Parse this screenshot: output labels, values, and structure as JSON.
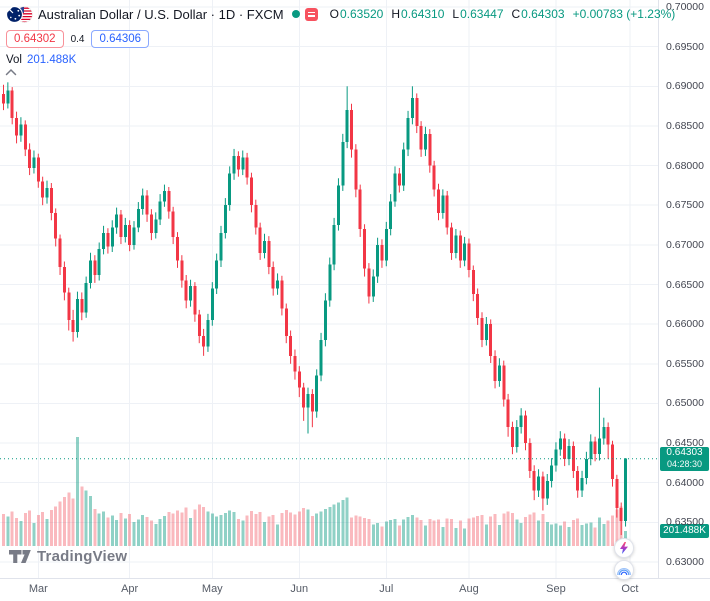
{
  "header": {
    "title": "Australian Dollar / U.S. Dollar · 1D · FXCM",
    "ohlc": {
      "o_label": "O",
      "o_value": "0.63520",
      "h_label": "H",
      "h_value": "0.64310",
      "l_label": "L",
      "l_value": "0.63447",
      "c_label": "C",
      "c_value": "0.64303",
      "change_value": "+0.00783 (+1.23%)"
    },
    "sell_price": "0.64302",
    "spread": "0.4",
    "buy_price": "0.64306",
    "volume_label": "Vol",
    "volume_value": "201.488K"
  },
  "price_axis": {
    "current_price_badge": {
      "price": "0.64303",
      "countdown": "04:28:30"
    },
    "volume_badge": {
      "value": "201.488K"
    }
  },
  "footer": {
    "logo_text": "TradingView"
  },
  "chart_data": {
    "type": "candlestick",
    "symbol": "AUD/USD",
    "title": "Australian Dollar / U.S. Dollar",
    "timeframe": "1D",
    "exchange": "FXCM",
    "price_range": [
      0.63,
      0.7
    ],
    "grid_step": 0.005,
    "y_axis_labels": [
      "0.70000",
      "0.69500",
      "0.69000",
      "0.68500",
      "0.68000",
      "0.67500",
      "0.67000",
      "0.66500",
      "0.66000",
      "0.65500",
      "0.65000",
      "0.64500",
      "0.64000",
      "0.63500",
      "0.63000"
    ],
    "x_axis_ticks": [
      {
        "label": "Mar",
        "index": 8
      },
      {
        "label": "Apr",
        "index": 29
      },
      {
        "label": "May",
        "index": 48
      },
      {
        "label": "Jun",
        "index": 68
      },
      {
        "label": "Jul",
        "index": 88
      },
      {
        "label": "Aug",
        "index": 107
      },
      {
        "label": "Sep",
        "index": 127
      },
      {
        "label": "Oct",
        "index": 144
      }
    ],
    "current_price": 0.64303,
    "current_bar_countdown": "04:28:30",
    "last_volume_label": "201.488K",
    "volume_scale_max": 1450,
    "colors": {
      "up": "#089981",
      "down": "#f23645",
      "vol_up": "rgba(8,153,129,0.45)",
      "vol_down": "rgba(242,54,69,0.35)",
      "grid": "#eef1f6",
      "accent_blue": "#2962ff"
    },
    "candles": [
      [
        0.689,
        0.6902,
        0.687,
        0.6878,
        425
      ],
      [
        0.6878,
        0.6905,
        0.6872,
        0.6895,
        390
      ],
      [
        0.6895,
        0.6899,
        0.6852,
        0.686,
        460
      ],
      [
        0.686,
        0.6868,
        0.6828,
        0.6838,
        370
      ],
      [
        0.6838,
        0.6861,
        0.683,
        0.6852,
        330
      ],
      [
        0.6852,
        0.6857,
        0.6812,
        0.682,
        440
      ],
      [
        0.682,
        0.6828,
        0.6788,
        0.6797,
        475
      ],
      [
        0.6797,
        0.6819,
        0.679,
        0.681,
        305
      ],
      [
        0.681,
        0.6815,
        0.6772,
        0.678,
        415
      ],
      [
        0.678,
        0.6786,
        0.675,
        0.676,
        450
      ],
      [
        0.676,
        0.6781,
        0.6752,
        0.6772,
        360
      ],
      [
        0.6772,
        0.6778,
        0.6731,
        0.674,
        480
      ],
      [
        0.674,
        0.6746,
        0.6698,
        0.6708,
        525
      ],
      [
        0.6708,
        0.6713,
        0.6662,
        0.6672,
        590
      ],
      [
        0.6672,
        0.6679,
        0.663,
        0.664,
        655
      ],
      [
        0.664,
        0.6646,
        0.6592,
        0.6605,
        710
      ],
      [
        0.6605,
        0.6618,
        0.6578,
        0.659,
        630
      ],
      [
        0.659,
        0.6641,
        0.6583,
        0.6632,
        1450
      ],
      [
        0.6632,
        0.664,
        0.6605,
        0.6615,
        790
      ],
      [
        0.6615,
        0.666,
        0.6608,
        0.6652,
        735
      ],
      [
        0.6652,
        0.669,
        0.6645,
        0.668,
        665
      ],
      [
        0.668,
        0.6687,
        0.6652,
        0.6662,
        490
      ],
      [
        0.6662,
        0.6703,
        0.6655,
        0.6695,
        435
      ],
      [
        0.6695,
        0.6724,
        0.6688,
        0.6715,
        460
      ],
      [
        0.6715,
        0.6721,
        0.6689,
        0.6698,
        380
      ],
      [
        0.6698,
        0.6731,
        0.6691,
        0.6722,
        405
      ],
      [
        0.6722,
        0.6747,
        0.6714,
        0.6738,
        345
      ],
      [
        0.6738,
        0.6744,
        0.6701,
        0.671,
        440
      ],
      [
        0.671,
        0.6734,
        0.6703,
        0.6725,
        365
      ],
      [
        0.6725,
        0.6731,
        0.6692,
        0.67,
        425
      ],
      [
        0.67,
        0.673,
        0.6694,
        0.6722,
        320
      ],
      [
        0.6722,
        0.6754,
        0.6716,
        0.6745,
        355
      ],
      [
        0.6745,
        0.6771,
        0.6738,
        0.6762,
        415
      ],
      [
        0.6762,
        0.6769,
        0.6729,
        0.6738,
        385
      ],
      [
        0.6738,
        0.6745,
        0.6706,
        0.6715,
        340
      ],
      [
        0.6715,
        0.6741,
        0.6708,
        0.6732,
        295
      ],
      [
        0.6732,
        0.6764,
        0.6725,
        0.6755,
        360
      ],
      [
        0.6755,
        0.6776,
        0.6748,
        0.6768,
        400
      ],
      [
        0.6768,
        0.6773,
        0.6733,
        0.6742,
        455
      ],
      [
        0.6742,
        0.6748,
        0.6701,
        0.671,
        435
      ],
      [
        0.671,
        0.6716,
        0.6671,
        0.668,
        470
      ],
      [
        0.668,
        0.6687,
        0.6646,
        0.6655,
        445
      ],
      [
        0.6655,
        0.6662,
        0.662,
        0.663,
        510
      ],
      [
        0.663,
        0.6656,
        0.6622,
        0.6648,
        375
      ],
      [
        0.6648,
        0.6653,
        0.6603,
        0.6612,
        485
      ],
      [
        0.6612,
        0.6618,
        0.6576,
        0.6585,
        550
      ],
      [
        0.6585,
        0.6594,
        0.656,
        0.6572,
        520
      ],
      [
        0.6572,
        0.6613,
        0.6565,
        0.6605,
        460
      ],
      [
        0.6605,
        0.6653,
        0.6598,
        0.6645,
        430
      ],
      [
        0.6645,
        0.6689,
        0.6638,
        0.668,
        395
      ],
      [
        0.668,
        0.6724,
        0.6672,
        0.6715,
        415
      ],
      [
        0.6715,
        0.6759,
        0.6708,
        0.675,
        440
      ],
      [
        0.675,
        0.6799,
        0.6743,
        0.679,
        475
      ],
      [
        0.679,
        0.6821,
        0.6782,
        0.6812,
        450
      ],
      [
        0.6812,
        0.6818,
        0.6786,
        0.6795,
        360
      ],
      [
        0.6795,
        0.6819,
        0.6788,
        0.681,
        340
      ],
      [
        0.681,
        0.6816,
        0.6776,
        0.6785,
        405
      ],
      [
        0.6785,
        0.6791,
        0.6741,
        0.675,
        465
      ],
      [
        0.675,
        0.6757,
        0.6713,
        0.6722,
        425
      ],
      [
        0.6722,
        0.6728,
        0.6681,
        0.669,
        455
      ],
      [
        0.669,
        0.6714,
        0.6683,
        0.6705,
        320
      ],
      [
        0.6705,
        0.6711,
        0.6663,
        0.6672,
        390
      ],
      [
        0.6672,
        0.6679,
        0.6636,
        0.6645,
        410
      ],
      [
        0.6645,
        0.6664,
        0.6637,
        0.6655,
        285
      ],
      [
        0.6655,
        0.6661,
        0.6611,
        0.662,
        440
      ],
      [
        0.662,
        0.6626,
        0.6576,
        0.6585,
        480
      ],
      [
        0.6585,
        0.6592,
        0.655,
        0.656,
        445
      ],
      [
        0.656,
        0.6568,
        0.653,
        0.654,
        420
      ],
      [
        0.654,
        0.6547,
        0.6508,
        0.652,
        460
      ],
      [
        0.652,
        0.6526,
        0.6478,
        0.6495,
        505
      ],
      [
        0.6495,
        0.652,
        0.6462,
        0.6512,
        485
      ],
      [
        0.6512,
        0.6518,
        0.647,
        0.649,
        400
      ],
      [
        0.649,
        0.6543,
        0.6482,
        0.6535,
        430
      ],
      [
        0.6535,
        0.6589,
        0.6528,
        0.658,
        460
      ],
      [
        0.658,
        0.6639,
        0.6572,
        0.663,
        495
      ],
      [
        0.663,
        0.6684,
        0.6622,
        0.6675,
        520
      ],
      [
        0.6675,
        0.6734,
        0.6668,
        0.6725,
        550
      ],
      [
        0.6725,
        0.6784,
        0.6718,
        0.6775,
        580
      ],
      [
        0.6775,
        0.684,
        0.6768,
        0.683,
        615
      ],
      [
        0.683,
        0.69,
        0.6822,
        0.687,
        645
      ],
      [
        0.687,
        0.6878,
        0.681,
        0.682,
        380
      ],
      [
        0.682,
        0.6827,
        0.676,
        0.677,
        408
      ],
      [
        0.677,
        0.6776,
        0.671,
        0.672,
        392
      ],
      [
        0.672,
        0.6726,
        0.666,
        0.667,
        372
      ],
      [
        0.667,
        0.6677,
        0.6626,
        0.6635,
        360
      ],
      [
        0.6635,
        0.6669,
        0.6628,
        0.666,
        284
      ],
      [
        0.666,
        0.6709,
        0.6652,
        0.67,
        308
      ],
      [
        0.67,
        0.6707,
        0.6671,
        0.668,
        260
      ],
      [
        0.668,
        0.6729,
        0.6673,
        0.672,
        328
      ],
      [
        0.672,
        0.6764,
        0.6712,
        0.6755,
        344
      ],
      [
        0.6755,
        0.6799,
        0.6748,
        0.679,
        360
      ],
      [
        0.679,
        0.6797,
        0.6766,
        0.6775,
        272
      ],
      [
        0.6775,
        0.6829,
        0.6768,
        0.682,
        352
      ],
      [
        0.682,
        0.6869,
        0.6812,
        0.686,
        384
      ],
      [
        0.686,
        0.69,
        0.6852,
        0.6885,
        412
      ],
      [
        0.6885,
        0.6891,
        0.6841,
        0.685,
        376
      ],
      [
        0.685,
        0.6856,
        0.6811,
        0.682,
        348
      ],
      [
        0.682,
        0.6849,
        0.6812,
        0.684,
        276
      ],
      [
        0.684,
        0.6846,
        0.6791,
        0.68,
        360
      ],
      [
        0.68,
        0.6806,
        0.6761,
        0.677,
        336
      ],
      [
        0.677,
        0.6777,
        0.6731,
        0.674,
        352
      ],
      [
        0.674,
        0.677,
        0.6733,
        0.6762,
        252
      ],
      [
        0.6762,
        0.6768,
        0.6713,
        0.6722,
        368
      ],
      [
        0.6722,
        0.6728,
        0.6681,
        0.669,
        356
      ],
      [
        0.669,
        0.672,
        0.6683,
        0.6712,
        240
      ],
      [
        0.6712,
        0.6718,
        0.6671,
        0.668,
        340
      ],
      [
        0.668,
        0.671,
        0.6673,
        0.6702,
        232
      ],
      [
        0.6702,
        0.6708,
        0.6659,
        0.6668,
        364
      ],
      [
        0.6668,
        0.6674,
        0.6629,
        0.6638,
        380
      ],
      [
        0.6638,
        0.6645,
        0.6599,
        0.6608,
        396
      ],
      [
        0.6608,
        0.6615,
        0.6571,
        0.658,
        412
      ],
      [
        0.658,
        0.6609,
        0.6573,
        0.66,
        288
      ],
      [
        0.66,
        0.6606,
        0.6551,
        0.656,
        392
      ],
      [
        0.656,
        0.6567,
        0.6519,
        0.6528,
        424
      ],
      [
        0.6528,
        0.6557,
        0.6521,
        0.6548,
        280
      ],
      [
        0.6548,
        0.6554,
        0.6496,
        0.6505,
        432
      ],
      [
        0.6505,
        0.6512,
        0.6458,
        0.647,
        460
      ],
      [
        0.647,
        0.6477,
        0.6436,
        0.6445,
        436
      ],
      [
        0.6445,
        0.6479,
        0.6438,
        0.647,
        352
      ],
      [
        0.647,
        0.6494,
        0.6462,
        0.6485,
        304
      ],
      [
        0.6485,
        0.6491,
        0.6441,
        0.645,
        388
      ],
      [
        0.645,
        0.6456,
        0.6406,
        0.6415,
        420
      ],
      [
        0.6415,
        0.6422,
        0.6378,
        0.639,
        448
      ],
      [
        0.639,
        0.6417,
        0.6382,
        0.6408,
        336
      ],
      [
        0.6408,
        0.6414,
        0.6365,
        0.638,
        428
      ],
      [
        0.638,
        0.6411,
        0.6372,
        0.6402,
        316
      ],
      [
        0.6402,
        0.6431,
        0.6394,
        0.6422,
        288
      ],
      [
        0.6422,
        0.6451,
        0.6414,
        0.6442,
        300
      ],
      [
        0.6442,
        0.6465,
        0.6434,
        0.6456,
        272
      ],
      [
        0.6456,
        0.6462,
        0.6421,
        0.643,
        324
      ],
      [
        0.643,
        0.6455,
        0.6422,
        0.6446,
        252
      ],
      [
        0.6446,
        0.6452,
        0.6406,
        0.6415,
        344
      ],
      [
        0.6415,
        0.6421,
        0.6381,
        0.639,
        368
      ],
      [
        0.639,
        0.6415,
        0.6382,
        0.6406,
        280
      ],
      [
        0.6406,
        0.6439,
        0.6398,
        0.643,
        296
      ],
      [
        0.643,
        0.6461,
        0.6422,
        0.6452,
        312
      ],
      [
        0.6452,
        0.6458,
        0.6427,
        0.6436,
        248
      ],
      [
        0.6436,
        0.652,
        0.6428,
        0.6456,
        380
      ],
      [
        0.6456,
        0.6482,
        0.6448,
        0.647,
        292
      ],
      [
        0.647,
        0.6476,
        0.643,
        0.6448,
        340
      ],
      [
        0.6448,
        0.6453,
        0.6395,
        0.6405,
        404
      ],
      [
        0.6405,
        0.641,
        0.6356,
        0.6368,
        488
      ],
      [
        0.6368,
        0.6375,
        0.6334,
        0.6352,
        524
      ],
      [
        0.6352,
        0.6431,
        0.63447,
        0.64303,
        201.488
      ]
    ]
  }
}
